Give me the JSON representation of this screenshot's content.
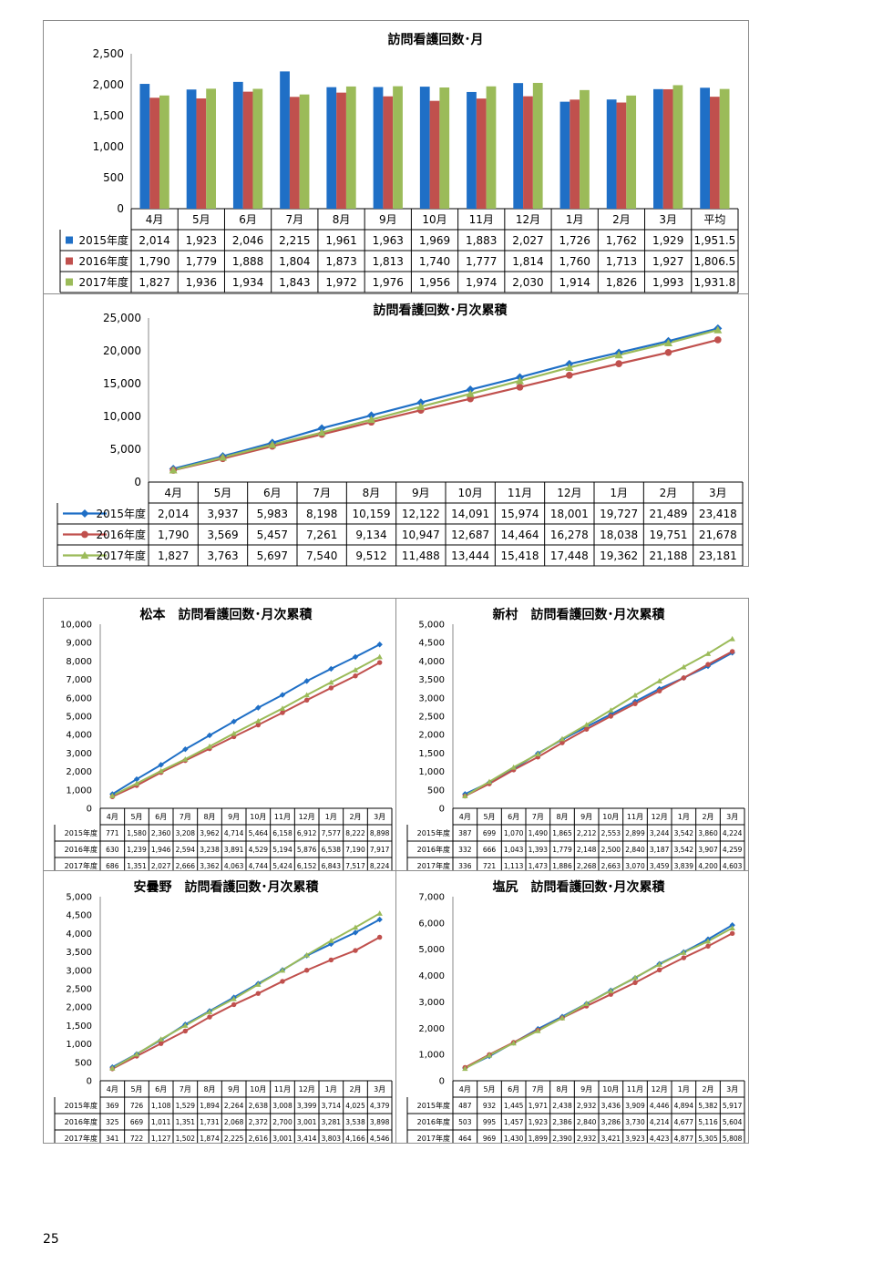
{
  "page_number": "25",
  "colors": {
    "s2015": "#1f6fc6",
    "s2016": "#c0504d",
    "s2017": "#9bbb59"
  },
  "chart_data": [
    {
      "type": "bar",
      "title": "訪問看護回数･月",
      "categories": [
        "4月",
        "5月",
        "6月",
        "7月",
        "8月",
        "9月",
        "10月",
        "11月",
        "12月",
        "1月",
        "2月",
        "3月",
        "平均"
      ],
      "category_labels": [
        "4月",
        "5月",
        "6月",
        "7月",
        "8月",
        "9月",
        "10月",
        "11月",
        "12月",
        "1月",
        "2月",
        "3月",
        "平均"
      ],
      "ylim": [
        0,
        2500
      ],
      "yticks": [
        0,
        500,
        1000,
        1500,
        2000,
        2500
      ],
      "ytick_labels": [
        "0",
        "500",
        "1,000",
        "1,500",
        "2,000",
        "2,500"
      ],
      "legend": "table",
      "series": [
        {
          "name": "2015年度",
          "values": [
            2014,
            1923,
            2046,
            2215,
            1961,
            1963,
            1969,
            1883,
            2027,
            1726,
            1762,
            1929,
            1951.5
          ],
          "labels": [
            "2,014",
            "1,923",
            "2,046",
            "2,215",
            "1,961",
            "1,963",
            "1,969",
            "1,883",
            "2,027",
            "1,726",
            "1,762",
            "1,929",
            "1,951.5"
          ]
        },
        {
          "name": "2016年度",
          "values": [
            1790,
            1779,
            1888,
            1804,
            1873,
            1813,
            1740,
            1777,
            1814,
            1760,
            1713,
            1927,
            1806.5
          ],
          "labels": [
            "1,790",
            "1,779",
            "1,888",
            "1,804",
            "1,873",
            "1,813",
            "1,740",
            "1,777",
            "1,814",
            "1,760",
            "1,713",
            "1,927",
            "1,806.5"
          ]
        },
        {
          "name": "2017年度",
          "values": [
            1827,
            1936,
            1934,
            1843,
            1972,
            1976,
            1956,
            1974,
            2030,
            1914,
            1826,
            1993,
            1931.8
          ],
          "labels": [
            "1,827",
            "1,936",
            "1,934",
            "1,843",
            "1,972",
            "1,976",
            "1,956",
            "1,974",
            "2,030",
            "1,914",
            "1,826",
            "1,993",
            "1,931.8"
          ]
        }
      ]
    },
    {
      "type": "line",
      "title": "訪問看護回数･月次累積",
      "categories": [
        "4月",
        "5月",
        "6月",
        "7月",
        "8月",
        "9月",
        "10月",
        "11月",
        "12月",
        "1月",
        "2月",
        "3月"
      ],
      "ylim": [
        0,
        25000
      ],
      "yticks": [
        0,
        5000,
        10000,
        15000,
        20000,
        25000
      ],
      "ytick_labels": [
        "0",
        "5,000",
        "10,000",
        "15,000",
        "20,000",
        "25,000"
      ],
      "series": [
        {
          "name": "2015年度",
          "values": [
            2014,
            3937,
            5983,
            8198,
            10159,
            12122,
            14091,
            15974,
            18001,
            19727,
            21489,
            23418
          ],
          "labels": [
            "2,014",
            "3,937",
            "5,983",
            "8,198",
            "10,159",
            "12,122",
            "14,091",
            "15,974",
            "18,001",
            "19,727",
            "21,489",
            "23,418"
          ]
        },
        {
          "name": "2016年度",
          "values": [
            1790,
            3569,
            5457,
            7261,
            9134,
            10947,
            12687,
            14464,
            16278,
            18038,
            19751,
            21678
          ],
          "labels": [
            "1,790",
            "3,569",
            "5,457",
            "7,261",
            "9,134",
            "10,947",
            "12,687",
            "14,464",
            "16,278",
            "18,038",
            "19,751",
            "21,678"
          ]
        },
        {
          "name": "2017年度",
          "values": [
            1827,
            3763,
            5697,
            7540,
            9512,
            11488,
            13444,
            15418,
            17448,
            19362,
            21188,
            23181
          ],
          "labels": [
            "1,827",
            "3,763",
            "5,697",
            "7,540",
            "9,512",
            "11,488",
            "13,444",
            "15,418",
            "17,448",
            "19,362",
            "21,188",
            "23,181"
          ]
        }
      ]
    },
    {
      "type": "line",
      "title": "松本　訪問看護回数･月次累積",
      "categories": [
        "4月",
        "5月",
        "6月",
        "7月",
        "8月",
        "9月",
        "10月",
        "11月",
        "12月",
        "1月",
        "2月",
        "3月"
      ],
      "ylim": [
        0,
        10000
      ],
      "yticks": [
        0,
        1000,
        2000,
        3000,
        4000,
        5000,
        6000,
        7000,
        8000,
        9000,
        10000
      ],
      "ytick_labels": [
        "0",
        "1,000",
        "2,000",
        "3,000",
        "4,000",
        "5,000",
        "6,000",
        "7,000",
        "8,000",
        "9,000",
        "10,000"
      ],
      "series": [
        {
          "name": "2015年度",
          "values": [
            771,
            1580,
            2360,
            3208,
            3962,
            4714,
            5464,
            6158,
            6912,
            7577,
            8222,
            8898
          ],
          "labels": [
            "771",
            "1,580",
            "2,360",
            "3,208",
            "3,962",
            "4,714",
            "5,464",
            "6,158",
            "6,912",
            "7,577",
            "8,222",
            "8,898"
          ]
        },
        {
          "name": "2016年度",
          "values": [
            630,
            1239,
            1946,
            2594,
            3238,
            3891,
            4529,
            5194,
            5876,
            6538,
            7190,
            7917
          ],
          "labels": [
            "630",
            "1,239",
            "1,946",
            "2,594",
            "3,238",
            "3,891",
            "4,529",
            "5,194",
            "5,876",
            "6,538",
            "7,190",
            "7,917"
          ]
        },
        {
          "name": "2017年度",
          "values": [
            686,
            1351,
            2027,
            2666,
            3362,
            4063,
            4744,
            5424,
            6152,
            6843,
            7517,
            8224
          ],
          "labels": [
            "686",
            "1,351",
            "2,027",
            "2,666",
            "3,362",
            "4,063",
            "4,744",
            "5,424",
            "6,152",
            "6,843",
            "7,517",
            "8,224"
          ]
        }
      ]
    },
    {
      "type": "line",
      "title": "新村　訪問看護回数･月次累積",
      "categories": [
        "4月",
        "5月",
        "6月",
        "7月",
        "8月",
        "9月",
        "10月",
        "11月",
        "12月",
        "1月",
        "2月",
        "3月"
      ],
      "ylim": [
        0,
        5000
      ],
      "yticks": [
        0,
        500,
        1000,
        1500,
        2000,
        2500,
        3000,
        3500,
        4000,
        4500,
        5000
      ],
      "ytick_labels": [
        "0",
        "500",
        "1,000",
        "1,500",
        "2,000",
        "2,500",
        "3,000",
        "3,500",
        "4,000",
        "4,500",
        "5,000"
      ],
      "series": [
        {
          "name": "2015年度",
          "values": [
            387,
            699,
            1070,
            1490,
            1865,
            2212,
            2553,
            2899,
            3244,
            3542,
            3860,
            4224
          ],
          "labels": [
            "387",
            "699",
            "1,070",
            "1,490",
            "1,865",
            "2,212",
            "2,553",
            "2,899",
            "3,244",
            "3,542",
            "3,860",
            "4,224"
          ]
        },
        {
          "name": "2016年度",
          "values": [
            332,
            666,
            1043,
            1393,
            1779,
            2148,
            2500,
            2840,
            3187,
            3542,
            3907,
            4259
          ],
          "labels": [
            "332",
            "666",
            "1,043",
            "1,393",
            "1,779",
            "2,148",
            "2,500",
            "2,840",
            "3,187",
            "3,542",
            "3,907",
            "4,259"
          ]
        },
        {
          "name": "2017年度",
          "values": [
            336,
            721,
            1113,
            1473,
            1886,
            2268,
            2663,
            3070,
            3459,
            3839,
            4200,
            4603
          ],
          "labels": [
            "336",
            "721",
            "1,113",
            "1,473",
            "1,886",
            "2,268",
            "2,663",
            "3,070",
            "3,459",
            "3,839",
            "4,200",
            "4,603"
          ]
        }
      ]
    },
    {
      "type": "line",
      "title": "安曇野　訪問看護回数･月次累積",
      "categories": [
        "4月",
        "5月",
        "6月",
        "7月",
        "8月",
        "9月",
        "10月",
        "11月",
        "12月",
        "1月",
        "2月",
        "3月"
      ],
      "ylim": [
        0,
        5000
      ],
      "yticks": [
        0,
        500,
        1000,
        1500,
        2000,
        2500,
        3000,
        3500,
        4000,
        4500,
        5000
      ],
      "ytick_labels": [
        "0",
        "500",
        "1,000",
        "1,500",
        "2,000",
        "2,500",
        "3,000",
        "3,500",
        "4,000",
        "4,500",
        "5,000"
      ],
      "series": [
        {
          "name": "2015年度",
          "values": [
            369,
            726,
            1108,
            1529,
            1894,
            2264,
            2638,
            3008,
            3399,
            3714,
            4025,
            4379
          ],
          "labels": [
            "369",
            "726",
            "1,108",
            "1,529",
            "1,894",
            "2,264",
            "2,638",
            "3,008",
            "3,399",
            "3,714",
            "4,025",
            "4,379"
          ]
        },
        {
          "name": "2016年度",
          "values": [
            325,
            669,
            1011,
            1351,
            1731,
            2068,
            2372,
            2700,
            3001,
            3281,
            3538,
            3898
          ],
          "labels": [
            "325",
            "669",
            "1,011",
            "1,351",
            "1,731",
            "2,068",
            "2,372",
            "2,700",
            "3,001",
            "3,281",
            "3,538",
            "3,898"
          ]
        },
        {
          "name": "2017年度",
          "values": [
            341,
            722,
            1127,
            1502,
            1874,
            2225,
            2616,
            3001,
            3414,
            3803,
            4166,
            4546
          ],
          "labels": [
            "341",
            "722",
            "1,127",
            "1,502",
            "1,874",
            "2,225",
            "2,616",
            "3,001",
            "3,414",
            "3,803",
            "4,166",
            "4,546"
          ]
        }
      ]
    },
    {
      "type": "line",
      "title": "塩尻　訪問看護回数･月次累積",
      "categories": [
        "4月",
        "5月",
        "6月",
        "7月",
        "8月",
        "9月",
        "10月",
        "11月",
        "12月",
        "1月",
        "2月",
        "3月"
      ],
      "ylim": [
        0,
        7000
      ],
      "yticks": [
        0,
        1000,
        2000,
        3000,
        4000,
        5000,
        6000,
        7000
      ],
      "ytick_labels": [
        "0",
        "1,000",
        "2,000",
        "3,000",
        "4,000",
        "5,000",
        "6,000",
        "7,000"
      ],
      "series": [
        {
          "name": "2015年度",
          "values": [
            487,
            932,
            1445,
            1971,
            2438,
            2932,
            3436,
            3909,
            4446,
            4894,
            5382,
            5917
          ],
          "labels": [
            "487",
            "932",
            "1,445",
            "1,971",
            "2,438",
            "2,932",
            "3,436",
            "3,909",
            "4,446",
            "4,894",
            "5,382",
            "5,917"
          ]
        },
        {
          "name": "2016年度",
          "values": [
            503,
            995,
            1457,
            1923,
            2386,
            2840,
            3286,
            3730,
            4214,
            4677,
            5116,
            5604
          ],
          "labels": [
            "503",
            "995",
            "1,457",
            "1,923",
            "2,386",
            "2,840",
            "3,286",
            "3,730",
            "4,214",
            "4,677",
            "5,116",
            "5,604"
          ]
        },
        {
          "name": "2017年度",
          "values": [
            464,
            969,
            1430,
            1899,
            2390,
            2932,
            3421,
            3923,
            4423,
            4877,
            5305,
            5808
          ],
          "labels": [
            "464",
            "969",
            "1,430",
            "1,899",
            "2,390",
            "2,932",
            "3,421",
            "3,923",
            "4,423",
            "4,877",
            "5,305",
            "5,808"
          ]
        }
      ]
    }
  ]
}
